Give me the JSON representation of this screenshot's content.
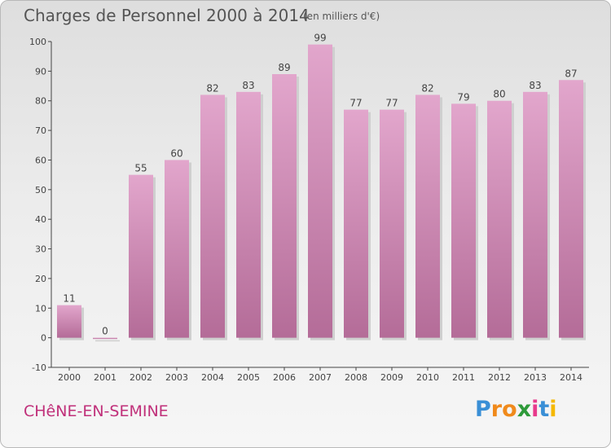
{
  "chart_data": {
    "type": "bar",
    "title": "Charges de Personnel 2000 à 2014",
    "subtitle": "(en milliers d'€)",
    "categories": [
      "2000",
      "2001",
      "2002",
      "2003",
      "2004",
      "2005",
      "2006",
      "2007",
      "2008",
      "2009",
      "2010",
      "2011",
      "2012",
      "2013",
      "2014"
    ],
    "values": [
      11,
      0,
      55,
      60,
      82,
      83,
      89,
      99,
      77,
      77,
      82,
      79,
      80,
      83,
      87
    ],
    "ylim": [
      -10,
      100
    ],
    "yticks": [
      -10,
      0,
      10,
      20,
      30,
      40,
      50,
      60,
      70,
      80,
      90,
      100
    ],
    "grid": false,
    "bar_color_top": "#e2a6cc",
    "bar_color_bottom": "#b46c98"
  },
  "commune": "CHêNE-EN-SEMINE",
  "logo": {
    "text": "Proxiti",
    "letter_colors": [
      "#3a8fd6",
      "#f08a1c",
      "#f08a1c",
      "#2e9a3a",
      "#e83a8c",
      "#3a8fd6",
      "#f5b800"
    ]
  }
}
